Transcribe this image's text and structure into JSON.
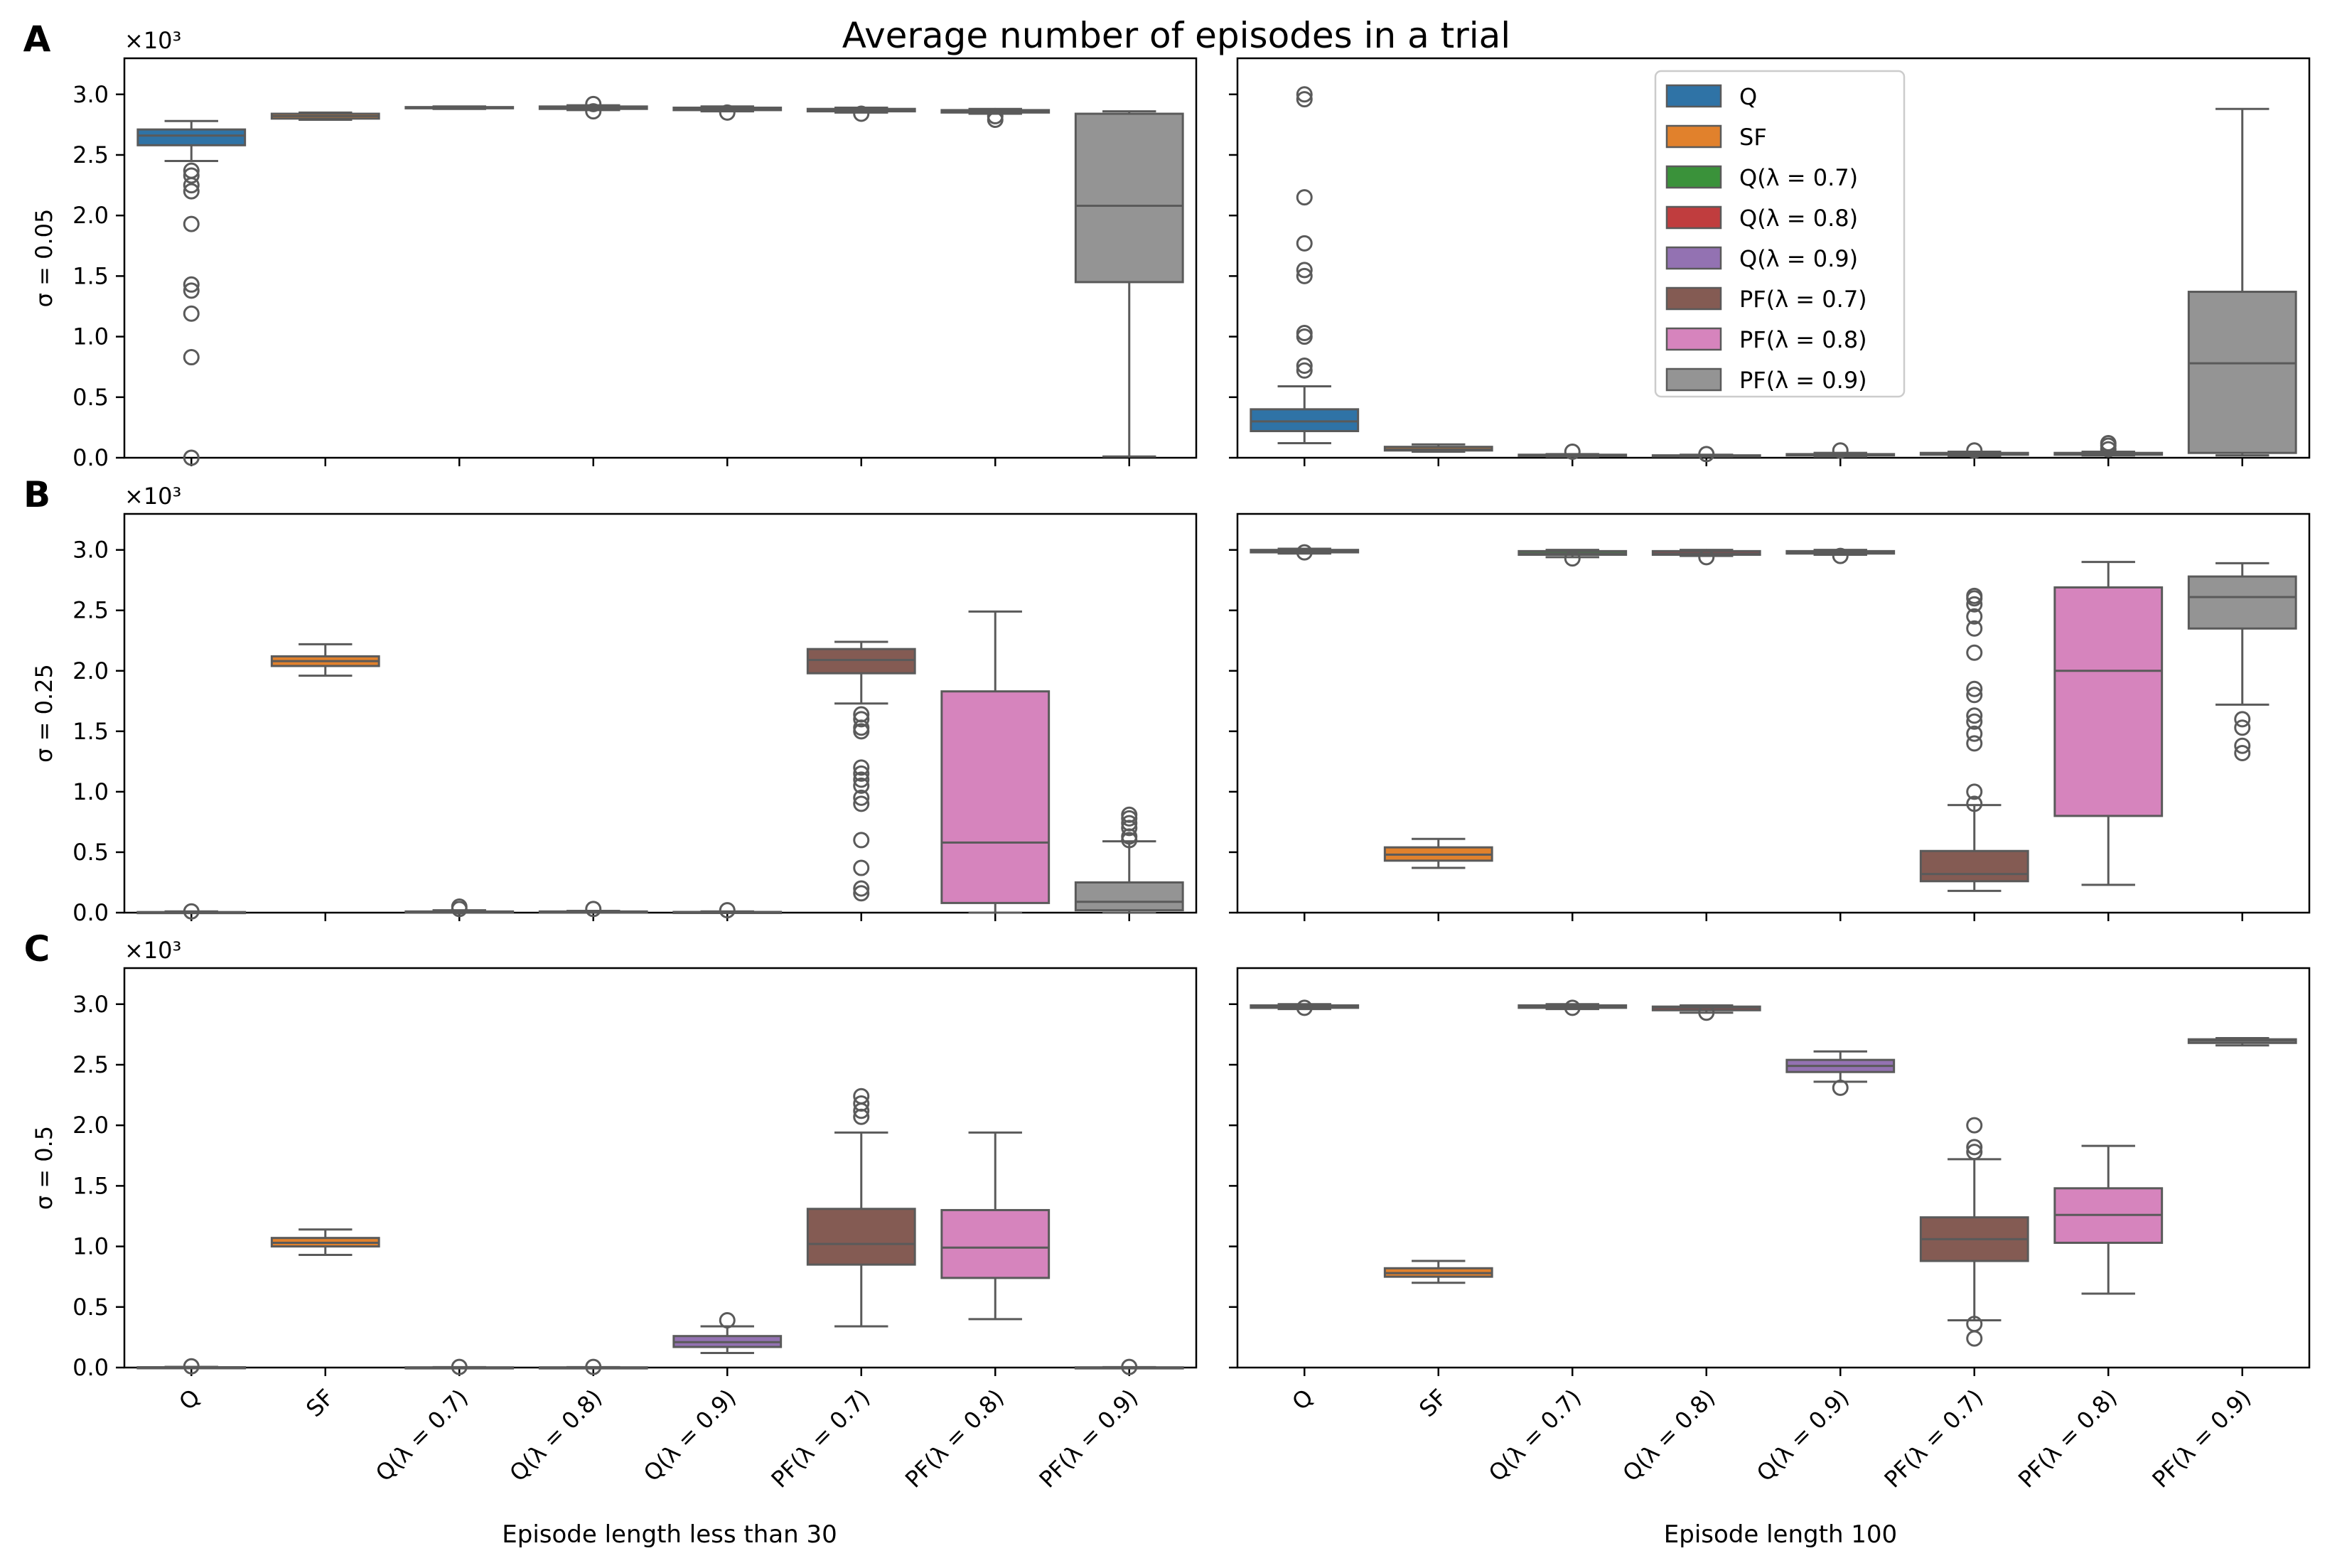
{
  "figure": {
    "title": "Average number of episodes in a trial",
    "panel_letters": [
      "A",
      "B",
      "C"
    ],
    "row_labels": [
      "σ = 0.05",
      "σ = 0.25",
      "σ = 0.5"
    ],
    "column_xlabels": [
      "Episode length less than 30",
      "Episode length 100"
    ],
    "y_multiplier": "×10³",
    "ytick_labels": [
      "0.0",
      "0.5",
      "1.0",
      "1.5",
      "2.0",
      "2.5",
      "3.0"
    ]
  },
  "legend": {
    "placement": "upper center of panel A right",
    "entries": [
      {
        "label": "Q",
        "color": "#2f73a6"
      },
      {
        "label": "SF",
        "color": "#e1812c"
      },
      {
        "label": "Q(λ = 0.7)",
        "color": "#3a923a"
      },
      {
        "label": "Q(λ = 0.8)",
        "color": "#c03d3e"
      },
      {
        "label": "Q(λ = 0.9)",
        "color": "#9372b2"
      },
      {
        "label": "PF(λ = 0.7)",
        "color": "#845b53"
      },
      {
        "label": "PF(λ = 0.8)",
        "color": "#d684bd"
      },
      {
        "label": "PF(λ = 0.9)",
        "color": "#949494"
      }
    ]
  },
  "chart_data": {
    "type": "box",
    "title": "Average number of episodes in a trial",
    "categories": [
      "Q",
      "SF",
      "Q(λ = 0.7)",
      "Q(λ = 0.8)",
      "Q(λ = 0.9)",
      "PF(λ = 0.7)",
      "PF(λ = 0.8)",
      "PF(λ = 0.9)"
    ],
    "colors": [
      "#2f73a6",
      "#e1812c",
      "#3a923a",
      "#c03d3e",
      "#9372b2",
      "#845b53",
      "#d684bd",
      "#949494"
    ],
    "ylim": [
      0,
      3.1
    ],
    "y_unit": "×10³",
    "grid": false,
    "panels": [
      {
        "row": "σ = 0.05",
        "column": "Episode length less than 30",
        "boxes": [
          {
            "min": 2.45,
            "q1": 2.58,
            "median": 2.66,
            "q3": 2.71,
            "max": 2.78,
            "outliers": [
              2.37,
              2.33,
              2.25,
              2.2,
              1.93,
              1.43,
              1.38,
              1.19,
              0.83,
              0.0
            ]
          },
          {
            "min": 2.79,
            "q1": 2.8,
            "median": 2.82,
            "q3": 2.84,
            "max": 2.85,
            "outliers": []
          },
          {
            "min": 2.88,
            "q1": 2.885,
            "median": 2.89,
            "q3": 2.895,
            "max": 2.9,
            "outliers": []
          },
          {
            "min": 2.87,
            "q1": 2.88,
            "median": 2.89,
            "q3": 2.9,
            "max": 2.91,
            "outliers": [
              2.92,
              2.86
            ]
          },
          {
            "min": 2.86,
            "q1": 2.87,
            "median": 2.88,
            "q3": 2.89,
            "max": 2.9,
            "outliers": [
              2.85
            ]
          },
          {
            "min": 2.85,
            "q1": 2.86,
            "median": 2.87,
            "q3": 2.88,
            "max": 2.89,
            "outliers": [
              2.84
            ]
          },
          {
            "min": 2.84,
            "q1": 2.85,
            "median": 2.86,
            "q3": 2.87,
            "max": 2.88,
            "outliers": [
              2.82,
              2.79
            ]
          },
          {
            "min": 0.01,
            "q1": 1.45,
            "median": 2.08,
            "q3": 2.84,
            "max": 2.86,
            "outliers": []
          }
        ]
      },
      {
        "row": "σ = 0.05",
        "column": "Episode length 100",
        "boxes": [
          {
            "min": 0.12,
            "q1": 0.22,
            "median": 0.3,
            "q3": 0.4,
            "max": 0.59,
            "outliers": [
              0.72,
              0.76,
              1.0,
              1.03,
              1.5,
              1.55,
              1.77,
              2.15,
              2.96,
              3.0
            ]
          },
          {
            "min": 0.05,
            "q1": 0.06,
            "median": 0.07,
            "q3": 0.09,
            "max": 0.11,
            "outliers": []
          },
          {
            "min": 0.01,
            "q1": 0.015,
            "median": 0.02,
            "q3": 0.025,
            "max": 0.03,
            "outliers": [
              0.05
            ]
          },
          {
            "min": 0.01,
            "q1": 0.012,
            "median": 0.015,
            "q3": 0.02,
            "max": 0.025,
            "outliers": [
              0.03
            ]
          },
          {
            "min": 0.01,
            "q1": 0.02,
            "median": 0.025,
            "q3": 0.03,
            "max": 0.04,
            "outliers": [
              0.06
            ]
          },
          {
            "min": 0.015,
            "q1": 0.025,
            "median": 0.03,
            "q3": 0.04,
            "max": 0.05,
            "outliers": [
              0.06
            ]
          },
          {
            "min": 0.02,
            "q1": 0.025,
            "median": 0.03,
            "q3": 0.04,
            "max": 0.05,
            "outliers": [
              0.07,
              0.1,
              0.12
            ]
          },
          {
            "min": 0.02,
            "q1": 0.04,
            "median": 0.78,
            "q3": 1.37,
            "max": 2.88,
            "outliers": []
          }
        ]
      },
      {
        "row": "σ = 0.25",
        "column": "Episode length less than 30",
        "boxes": [
          {
            "min": 0.0,
            "q1": 0.0,
            "median": 0.0,
            "q3": 0.005,
            "max": 0.01,
            "outliers": [
              0.01
            ]
          },
          {
            "min": 1.96,
            "q1": 2.04,
            "median": 2.08,
            "q3": 2.12,
            "max": 2.22,
            "outliers": []
          },
          {
            "min": 0.0,
            "q1": 0.0,
            "median": 0.005,
            "q3": 0.01,
            "max": 0.02,
            "outliers": [
              0.05,
              0.03
            ]
          },
          {
            "min": 0.0,
            "q1": 0.0,
            "median": 0.005,
            "q3": 0.01,
            "max": 0.015,
            "outliers": [
              0.03
            ]
          },
          {
            "min": 0.0,
            "q1": 0.0,
            "median": 0.003,
            "q3": 0.006,
            "max": 0.01,
            "outliers": [
              0.02
            ]
          },
          {
            "min": 1.73,
            "q1": 1.98,
            "median": 2.09,
            "q3": 2.18,
            "max": 2.24,
            "outliers": [
              1.64,
              1.6,
              1.53,
              1.5,
              1.2,
              1.15,
              1.1,
              1.05,
              0.95,
              0.9,
              0.6,
              0.37,
              0.2,
              0.16
            ]
          },
          {
            "min": 0.0,
            "q1": 0.08,
            "median": 0.58,
            "q3": 1.83,
            "max": 2.49,
            "outliers": []
          },
          {
            "min": 0.0,
            "q1": 0.02,
            "median": 0.09,
            "q3": 0.25,
            "max": 0.59,
            "outliers": [
              0.6,
              0.63,
              0.7,
              0.74,
              0.78,
              0.81
            ]
          }
        ]
      },
      {
        "row": "σ = 0.25",
        "column": "Episode length 100",
        "boxes": [
          {
            "min": 2.97,
            "q1": 2.98,
            "median": 2.99,
            "q3": 3.0,
            "max": 3.01,
            "outliers": [
              2.98
            ]
          },
          {
            "min": 0.37,
            "q1": 0.43,
            "median": 0.48,
            "q3": 0.54,
            "max": 0.61,
            "outliers": []
          },
          {
            "min": 2.94,
            "q1": 2.96,
            "median": 2.97,
            "q3": 2.99,
            "max": 3.0,
            "outliers": [
              2.93
            ]
          },
          {
            "min": 2.95,
            "q1": 2.96,
            "median": 2.97,
            "q3": 2.99,
            "max": 3.0,
            "outliers": [
              2.94
            ]
          },
          {
            "min": 2.96,
            "q1": 2.97,
            "median": 2.98,
            "q3": 2.99,
            "max": 3.0,
            "outliers": [
              2.95
            ]
          },
          {
            "min": 0.18,
            "q1": 0.26,
            "median": 0.32,
            "q3": 0.51,
            "max": 0.89,
            "outliers": [
              0.9,
              1.0,
              1.4,
              1.48,
              1.58,
              1.63,
              1.8,
              1.85,
              2.15,
              2.35,
              2.45,
              2.55,
              2.6,
              2.62
            ]
          },
          {
            "min": 0.23,
            "q1": 0.8,
            "median": 2.0,
            "q3": 2.69,
            "max": 2.9,
            "outliers": []
          },
          {
            "min": 1.72,
            "q1": 2.35,
            "median": 2.61,
            "q3": 2.78,
            "max": 2.89,
            "outliers": [
              1.6,
              1.53,
              1.38,
              1.32
            ]
          }
        ]
      },
      {
        "row": "σ = 0.5",
        "column": "Episode length less than 30",
        "boxes": [
          {
            "min": 0.0,
            "q1": 0.0,
            "median": 0.0,
            "q3": 0.003,
            "max": 0.006,
            "outliers": [
              0.01
            ]
          },
          {
            "min": 0.93,
            "q1": 1.0,
            "median": 1.03,
            "q3": 1.07,
            "max": 1.14,
            "outliers": []
          },
          {
            "min": 0.0,
            "q1": 0.0,
            "median": 0.0,
            "q3": 0.002,
            "max": 0.004,
            "outliers": [
              0.005
            ]
          },
          {
            "min": 0.0,
            "q1": 0.0,
            "median": 0.0,
            "q3": 0.002,
            "max": 0.004,
            "outliers": [
              0.005
            ]
          },
          {
            "min": 0.12,
            "q1": 0.17,
            "median": 0.21,
            "q3": 0.26,
            "max": 0.34,
            "outliers": [
              0.39
            ]
          },
          {
            "min": 0.34,
            "q1": 0.85,
            "median": 1.02,
            "q3": 1.31,
            "max": 1.94,
            "outliers": [
              2.07,
              2.12,
              2.18,
              2.24
            ]
          },
          {
            "min": 0.4,
            "q1": 0.74,
            "median": 0.99,
            "q3": 1.3,
            "max": 1.94,
            "outliers": []
          },
          {
            "min": 0.0,
            "q1": 0.0,
            "median": 0.0,
            "q3": 0.002,
            "max": 0.004,
            "outliers": [
              0.005
            ]
          }
        ]
      },
      {
        "row": "σ = 0.5",
        "column": "Episode length 100",
        "boxes": [
          {
            "min": 2.96,
            "q1": 2.97,
            "median": 2.98,
            "q3": 2.99,
            "max": 3.0,
            "outliers": [
              2.97
            ]
          },
          {
            "min": 0.7,
            "q1": 0.75,
            "median": 0.78,
            "q3": 0.82,
            "max": 0.88,
            "outliers": []
          },
          {
            "min": 2.96,
            "q1": 2.97,
            "median": 2.98,
            "q3": 2.99,
            "max": 3.0,
            "outliers": [
              2.97
            ]
          },
          {
            "min": 2.93,
            "q1": 2.95,
            "median": 2.97,
            "q3": 2.98,
            "max": 2.99,
            "outliers": [
              2.93
            ]
          },
          {
            "min": 2.36,
            "q1": 2.44,
            "median": 2.49,
            "q3": 2.54,
            "max": 2.61,
            "outliers": [
              2.31
            ]
          },
          {
            "min": 0.39,
            "q1": 0.88,
            "median": 1.06,
            "q3": 1.24,
            "max": 1.72,
            "outliers": [
              1.78,
              1.82,
              2.0,
              0.36,
              0.24
            ]
          },
          {
            "min": 0.61,
            "q1": 1.03,
            "median": 1.26,
            "q3": 1.48,
            "max": 1.83,
            "outliers": []
          },
          {
            "min": 2.66,
            "q1": 2.68,
            "median": 2.7,
            "q3": 2.71,
            "max": 2.72,
            "outliers": []
          }
        ]
      }
    ]
  }
}
